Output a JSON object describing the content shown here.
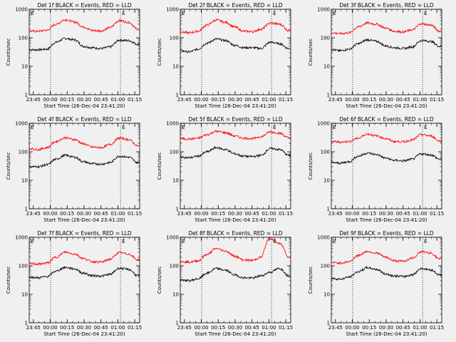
{
  "chart_data": {
    "type": "line",
    "layout": "3x3 grid of log-scale time series panels",
    "colors": {
      "events": "#000000",
      "lld": "#ff0000",
      "background": "#f0f0f0"
    },
    "xlabel": "Start Time (26-Dec-04 23:41:20)",
    "ylabel": "Counts/sec",
    "y_scale": "log",
    "ylim": [
      1,
      1000
    ],
    "y_ticks": [
      "1",
      "10",
      "100",
      "1000"
    ],
    "x_ticks": [
      "23:45",
      "00:00",
      "00:15",
      "00:30",
      "00:45",
      "01:00",
      "01:15"
    ],
    "x_tick_minutes": [
      3.67,
      18.67,
      33.67,
      48.67,
      63.67,
      78.67,
      93.67
    ],
    "xlim_minutes_from_start": [
      0,
      98
    ],
    "dotted_markers_minutes": [
      19,
      81
    ],
    "marker_labels": [
      "E",
      "E"
    ],
    "panels": [
      {
        "title": "Det 1f BLACK = Events, RED = LLD",
        "series": [
          {
            "name": "Events",
            "color": "#000000",
            "values": [
              38,
              38,
              40,
              70,
              95,
              85,
              50,
              45,
              42,
              48,
              82,
              80,
              60
            ]
          },
          {
            "name": "LLD",
            "color": "#ff0000",
            "values": [
              170,
              170,
              185,
              300,
              430,
              360,
              240,
              180,
              175,
              230,
              400,
              350,
              200
            ]
          }
        ]
      },
      {
        "title": "Det 2f BLACK = Events, RED = LLD",
        "series": [
          {
            "name": "Events",
            "color": "#000000",
            "values": [
              35,
              32,
              40,
              65,
              90,
              80,
              55,
              45,
              45,
              42,
              70,
              62,
              42
            ]
          },
          {
            "name": "LLD",
            "color": "#ff0000",
            "values": [
              160,
              150,
              170,
              280,
              420,
              350,
              240,
              170,
              165,
              200,
              330,
              300,
              180
            ]
          }
        ]
      },
      {
        "title": "Det 3f BLACK = Events, RED = LLD",
        "series": [
          {
            "name": "Events",
            "color": "#000000",
            "values": [
              38,
              35,
              40,
              62,
              85,
              75,
              52,
              45,
              42,
              48,
              80,
              75,
              50
            ]
          },
          {
            "name": "LLD",
            "color": "#ff0000",
            "values": [
              150,
              140,
              150,
              240,
              330,
              300,
              220,
              170,
              160,
              190,
              310,
              280,
              170
            ]
          }
        ]
      },
      {
        "title": "Det 4f BLACK = Events, RED = LLD",
        "series": [
          {
            "name": "Events",
            "color": "#000000",
            "values": [
              30,
              30,
              35,
              55,
              75,
              65,
              45,
              38,
              37,
              42,
              70,
              65,
              42
            ]
          },
          {
            "name": "LLD",
            "color": "#ff0000",
            "values": [
              130,
              120,
              140,
              230,
              310,
              270,
              190,
              145,
              140,
              180,
              300,
              270,
              160
            ]
          }
        ]
      },
      {
        "title": "Det 5f BLACK = Events, RED = LLD",
        "series": [
          {
            "name": "Events",
            "color": "#000000",
            "values": [
              65,
              62,
              70,
              100,
              140,
              120,
              85,
              70,
              68,
              75,
              130,
              120,
              75
            ]
          },
          {
            "name": "LLD",
            "color": "#ff0000",
            "values": [
              290,
              280,
              300,
              400,
              520,
              470,
              360,
              300,
              290,
              340,
              500,
              450,
              310
            ]
          }
        ]
      },
      {
        "title": "Det 6f BLACK = Events, RED = LLD",
        "series": [
          {
            "name": "Events",
            "color": "#000000",
            "values": [
              42,
              40,
              45,
              70,
              90,
              80,
              60,
              50,
              48,
              55,
              85,
              78,
              55
            ]
          },
          {
            "name": "LLD",
            "color": "#ff0000",
            "values": [
              230,
              220,
              230,
              300,
              420,
              360,
              290,
              230,
              225,
              260,
              400,
              360,
              240
            ]
          }
        ]
      },
      {
        "title": "Det 7f BLACK = Events, RED = LLD",
        "series": [
          {
            "name": "Events",
            "color": "#000000",
            "values": [
              40,
              38,
              42,
              65,
              88,
              78,
              55,
              45,
              44,
              50,
              82,
              75,
              45
            ]
          },
          {
            "name": "LLD",
            "color": "#ff0000",
            "values": [
              120,
              115,
              125,
              200,
              300,
              260,
              180,
              140,
              135,
              170,
              290,
              260,
              160
            ]
          }
        ]
      },
      {
        "title": "Det 8f BLACK = Events, RED = LLD",
        "series": [
          {
            "name": "Events",
            "color": "#000000",
            "values": [
              32,
              30,
              35,
              55,
              80,
              70,
              48,
              38,
              37,
              45,
              60,
              80,
              45
            ]
          },
          {
            "name": "LLD",
            "color": "#ff0000",
            "values": [
              140,
              135,
              150,
              250,
              400,
              330,
              220,
              160,
              155,
              200,
              900,
              600,
              200
            ]
          }
        ]
      },
      {
        "title": "Det 9f BLACK = Events, RED = LLD",
        "series": [
          {
            "name": "Events",
            "color": "#000000",
            "values": [
              36,
              34,
              40,
              62,
              85,
              75,
              52,
              44,
              42,
              48,
              80,
              72,
              48
            ]
          },
          {
            "name": "LLD",
            "color": "#ff0000",
            "values": [
              130,
              125,
              140,
              230,
              320,
              280,
              200,
              150,
              145,
              185,
              310,
              280,
              170
            ]
          }
        ]
      }
    ],
    "x_minutes_for_values": [
      0,
      8,
      16,
      24,
      32,
      40,
      48,
      56,
      64,
      72,
      80,
      88,
      96
    ]
  }
}
